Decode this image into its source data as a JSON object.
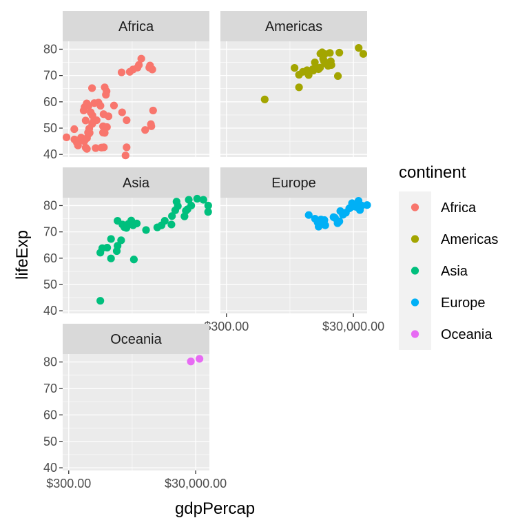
{
  "chart_data": {
    "type": "scatter",
    "facet_by": "continent",
    "facet_layout": "3 columns x 2 columns wrap (facet_wrap ncol = 2)",
    "xlabel": "gdpPercap",
    "ylabel": "lifeExp",
    "x_scale": "log10",
    "xlim": [
      241,
      49357
    ],
    "ylim": [
      39,
      83
    ],
    "x_ticks": [
      {
        "value": 300,
        "label": "$300.00"
      },
      {
        "value": 30000,
        "label": "$30,000.00"
      }
    ],
    "y_ticks": [
      {
        "value": 40,
        "label": "40"
      },
      {
        "value": 50,
        "label": "50"
      },
      {
        "value": 60,
        "label": "60"
      },
      {
        "value": 70,
        "label": "70"
      },
      {
        "value": 80,
        "label": "80"
      }
    ],
    "legend": {
      "title": "continent",
      "position": "right",
      "entries": [
        {
          "name": "Africa",
          "color": "#F8766D"
        },
        {
          "name": "Americas",
          "color": "#A3A500"
        },
        {
          "name": "Asia",
          "color": "#00BF7D"
        },
        {
          "name": "Europe",
          "color": "#00B0F6"
        },
        {
          "name": "Oceania",
          "color": "#E76BF3"
        }
      ]
    },
    "series": [
      {
        "name": "Africa",
        "color": "#F8766D",
        "points": [
          {
            "x": 277,
            "y": 46.5
          },
          {
            "x": 369,
            "y": 45.7
          },
          {
            "x": 403,
            "y": 44.5
          },
          {
            "x": 367,
            "y": 49.6
          },
          {
            "x": 420,
            "y": 43.4
          },
          {
            "x": 470,
            "y": 46.4
          },
          {
            "x": 527,
            "y": 45.0
          },
          {
            "x": 555,
            "y": 42.6
          },
          {
            "x": 580,
            "y": 42.1
          },
          {
            "x": 605,
            "y": 48.3
          },
          {
            "x": 582,
            "y": 46.2
          },
          {
            "x": 619,
            "y": 47.8
          },
          {
            "x": 641,
            "y": 48.2
          },
          {
            "x": 631,
            "y": 49.8
          },
          {
            "x": 555,
            "y": 52.9
          },
          {
            "x": 516,
            "y": 56.7
          },
          {
            "x": 534,
            "y": 58.0
          },
          {
            "x": 577,
            "y": 59.4
          },
          {
            "x": 613,
            "y": 58.4
          },
          {
            "x": 666,
            "y": 56.0
          },
          {
            "x": 710,
            "y": 54.8
          },
          {
            "x": 703,
            "y": 51.6
          },
          {
            "x": 739,
            "y": 52.5
          },
          {
            "x": 825,
            "y": 53.0
          },
          {
            "x": 759,
            "y": 59.5
          },
          {
            "x": 699,
            "y": 65.2
          },
          {
            "x": 883,
            "y": 59.7
          },
          {
            "x": 949,
            "y": 58.5
          },
          {
            "x": 797,
            "y": 42.4
          },
          {
            "x": 986,
            "y": 42.6
          },
          {
            "x": 1043,
            "y": 50.7
          },
          {
            "x": 1107,
            "y": 48.2
          },
          {
            "x": 1200,
            "y": 50.4
          },
          {
            "x": 1042,
            "y": 48.3
          },
          {
            "x": 1107,
            "y": 65.5
          },
          {
            "x": 1184,
            "y": 64.0
          },
          {
            "x": 1156,
            "y": 62.7
          },
          {
            "x": 1062,
            "y": 55.3
          },
          {
            "x": 1270,
            "y": 54.5
          },
          {
            "x": 1549,
            "y": 58.6
          },
          {
            "x": 1074,
            "y": 42.7
          },
          {
            "x": 2082,
            "y": 56.0
          },
          {
            "x": 2451,
            "y": 53.0
          },
          {
            "x": 2357,
            "y": 39.6
          },
          {
            "x": 2450,
            "y": 42.7
          },
          {
            "x": 2042,
            "y": 71.2
          },
          {
            "x": 2749,
            "y": 71.4
          },
          {
            "x": 3095,
            "y": 72.3
          },
          {
            "x": 3633,
            "y": 73.0
          },
          {
            "x": 3821,
            "y": 74.0
          },
          {
            "x": 4173,
            "y": 76.4
          },
          {
            "x": 4797,
            "y": 49.3
          },
          {
            "x": 5581,
            "y": 73.0
          },
          {
            "x": 5728,
            "y": 73.8
          },
          {
            "x": 6223,
            "y": 72.3
          },
          {
            "x": 5913,
            "y": 51.5
          },
          {
            "x": 6007,
            "y": 50.7
          },
          {
            "x": 6407,
            "y": 56.7
          }
        ]
      },
      {
        "name": "Americas",
        "color": "#A3A500",
        "points": [
          {
            "x": 1202,
            "y": 60.9
          },
          {
            "x": 3548,
            "y": 72.9
          },
          {
            "x": 4173,
            "y": 70.3
          },
          {
            "x": 4797,
            "y": 71.4
          },
          {
            "x": 4173,
            "y": 65.5
          },
          {
            "x": 5581,
            "y": 72.0
          },
          {
            "x": 5913,
            "y": 70.2
          },
          {
            "x": 6873,
            "y": 72.4
          },
          {
            "x": 7006,
            "y": 71.9
          },
          {
            "x": 7670,
            "y": 72.8
          },
          {
            "x": 7409,
            "y": 75.0
          },
          {
            "x": 8458,
            "y": 72.4
          },
          {
            "x": 8948,
            "y": 73.0
          },
          {
            "x": 9065,
            "y": 78.3
          },
          {
            "x": 9646,
            "y": 78.8
          },
          {
            "x": 10611,
            "y": 78.2
          },
          {
            "x": 10000,
            "y": 76.4
          },
          {
            "x": 10300,
            "y": 75.5
          },
          {
            "x": 11978,
            "y": 73.7
          },
          {
            "x": 11000,
            "y": 74.6
          },
          {
            "x": 12779,
            "y": 78.6
          },
          {
            "x": 13206,
            "y": 75.4
          },
          {
            "x": 13500,
            "y": 74.0
          },
          {
            "x": 18008,
            "y": 78.7
          },
          {
            "x": 17100,
            "y": 69.8
          },
          {
            "x": 36319,
            "y": 80.5
          },
          {
            "x": 42952,
            "y": 78.2
          }
        ]
      },
      {
        "name": "Asia",
        "color": "#00BF7D",
        "points": [
          {
            "x": 944,
            "y": 43.8
          },
          {
            "x": 944,
            "y": 62.1
          },
          {
            "x": 1014,
            "y": 63.8
          },
          {
            "x": 1211,
            "y": 64.0
          },
          {
            "x": 1392,
            "y": 67.3
          },
          {
            "x": 1391,
            "y": 59.9
          },
          {
            "x": 1713,
            "y": 62.7
          },
          {
            "x": 1765,
            "y": 64.7
          },
          {
            "x": 1764,
            "y": 74.2
          },
          {
            "x": 2009,
            "y": 66.8
          },
          {
            "x": 2106,
            "y": 72.8
          },
          {
            "x": 2258,
            "y": 71.8
          },
          {
            "x": 2434,
            "y": 71.5
          },
          {
            "x": 2600,
            "y": 73.0
          },
          {
            "x": 2900,
            "y": 74.3
          },
          {
            "x": 3095,
            "y": 72.5
          },
          {
            "x": 3190,
            "y": 59.5
          },
          {
            "x": 3540,
            "y": 73.2
          },
          {
            "x": 4959,
            "y": 70.7
          },
          {
            "x": 7458,
            "y": 71.7
          },
          {
            "x": 8700,
            "y": 72.5
          },
          {
            "x": 9786,
            "y": 74.2
          },
          {
            "x": 12452,
            "y": 72.8
          },
          {
            "x": 12700,
            "y": 76.0
          },
          {
            "x": 14300,
            "y": 78.2
          },
          {
            "x": 15700,
            "y": 79.8
          },
          {
            "x": 15000,
            "y": 81.5
          },
          {
            "x": 20000,
            "y": 75.9
          },
          {
            "x": 21000,
            "y": 78.0
          },
          {
            "x": 22316,
            "y": 78.6
          },
          {
            "x": 25523,
            "y": 80.0
          },
          {
            "x": 23348,
            "y": 82.2
          },
          {
            "x": 31656,
            "y": 82.6
          },
          {
            "x": 39724,
            "y": 82.2
          },
          {
            "x": 47306,
            "y": 80.0
          },
          {
            "x": 47143,
            "y": 77.6
          }
        ]
      },
      {
        "name": "Europe",
        "color": "#00B0F6",
        "points": [
          {
            "x": 5937,
            "y": 76.4
          },
          {
            "x": 7446,
            "y": 75.0
          },
          {
            "x": 8200,
            "y": 73.6
          },
          {
            "x": 8500,
            "y": 72.0
          },
          {
            "x": 9254,
            "y": 74.7
          },
          {
            "x": 9786,
            "y": 73.3
          },
          {
            "x": 10461,
            "y": 74.5
          },
          {
            "x": 10800,
            "y": 72.5
          },
          {
            "x": 14600,
            "y": 75.6
          },
          {
            "x": 15390,
            "y": 75.3
          },
          {
            "x": 16900,
            "y": 73.3
          },
          {
            "x": 18009,
            "y": 74.0
          },
          {
            "x": 18678,
            "y": 77.9
          },
          {
            "x": 20509,
            "y": 76.5
          },
          {
            "x": 22833,
            "y": 77.3
          },
          {
            "x": 25768,
            "y": 78.9
          },
          {
            "x": 28570,
            "y": 80.9
          },
          {
            "x": 27538,
            "y": 79.4
          },
          {
            "x": 30470,
            "y": 79.8
          },
          {
            "x": 33207,
            "y": 79.5
          },
          {
            "x": 33860,
            "y": 80.2
          },
          {
            "x": 35278,
            "y": 80.5
          },
          {
            "x": 36126,
            "y": 81.8
          },
          {
            "x": 37506,
            "y": 79.4
          },
          {
            "x": 38000,
            "y": 78.3
          },
          {
            "x": 40676,
            "y": 80.0
          },
          {
            "x": 49357,
            "y": 80.2
          }
        ]
      },
      {
        "name": "Oceania",
        "color": "#E76BF3",
        "points": [
          {
            "x": 25185,
            "y": 80.2
          },
          {
            "x": 34435,
            "y": 81.2
          }
        ]
      }
    ]
  }
}
